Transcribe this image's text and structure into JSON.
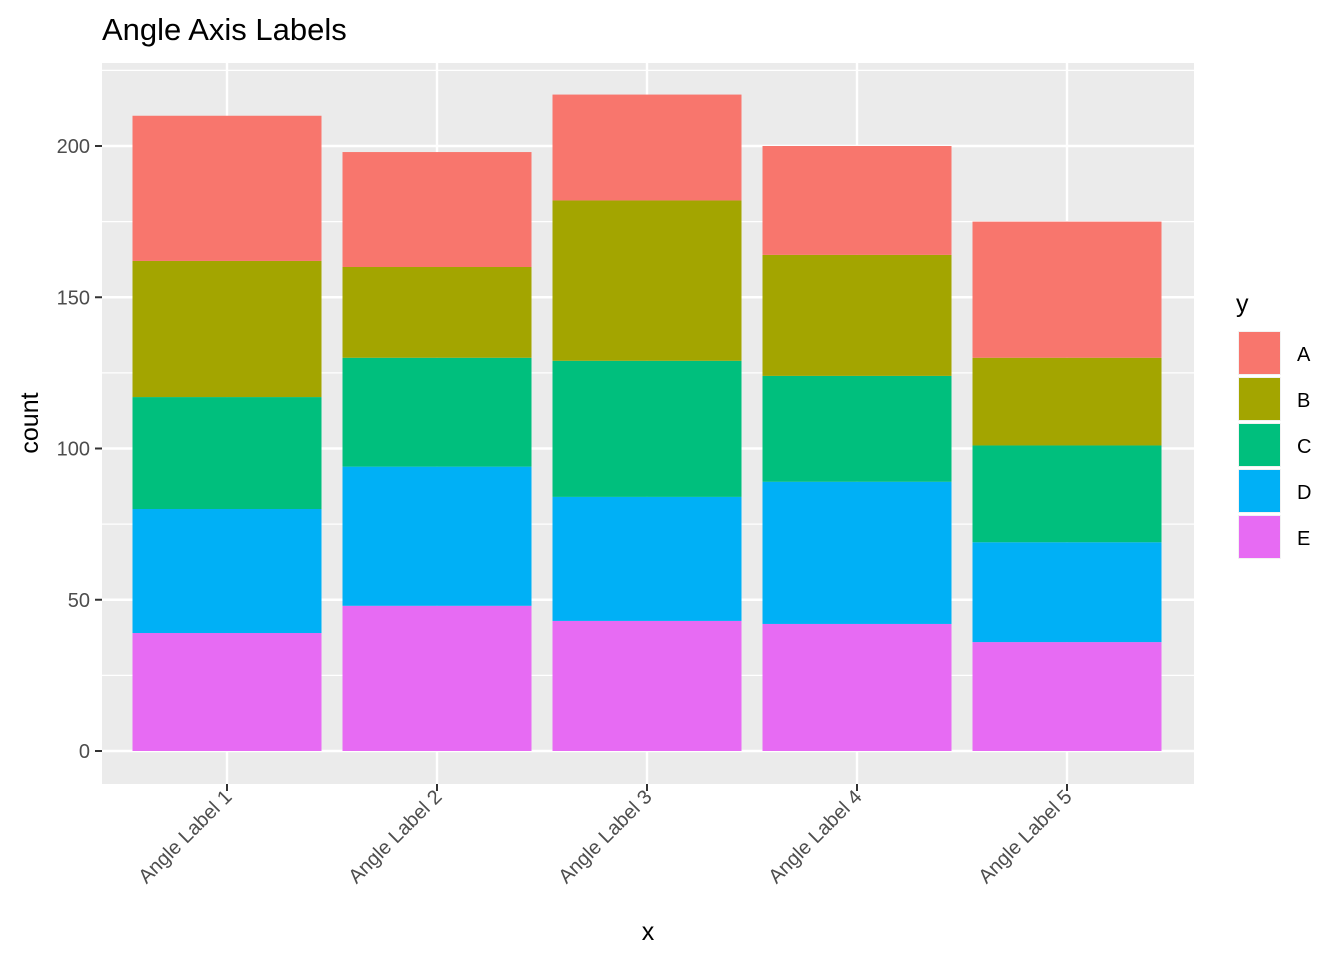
{
  "chart_data": {
    "type": "bar",
    "stacked": true,
    "title": "Angle Axis Labels",
    "xlabel": "x",
    "ylabel": "count",
    "categories": [
      "Angle Label 1",
      "Angle Label 2",
      "Angle Label 3",
      "Angle Label 4",
      "Angle Label 5"
    ],
    "yticks": [
      0,
      50,
      100,
      150,
      200
    ],
    "ytick_labels": [
      "0",
      "50",
      "100",
      "150",
      "200"
    ],
    "ylim": [
      -10,
      227
    ],
    "grid": true,
    "x_tick_label_angle": 45,
    "legend": {
      "title": "y",
      "position": "right"
    },
    "series": [
      {
        "name": "A",
        "color": "#F8766D",
        "values": [
          48,
          38,
          35,
          36,
          45
        ]
      },
      {
        "name": "B",
        "color": "#A3A500",
        "values": [
          45,
          30,
          53,
          40,
          29
        ]
      },
      {
        "name": "C",
        "color": "#00BF7D",
        "values": [
          37,
          36,
          45,
          35,
          32
        ]
      },
      {
        "name": "D",
        "color": "#00B0F6",
        "values": [
          41,
          46,
          41,
          47,
          33
        ]
      },
      {
        "name": "E",
        "color": "#E76BF3",
        "values": [
          39,
          48,
          43,
          42,
          36
        ]
      }
    ]
  }
}
